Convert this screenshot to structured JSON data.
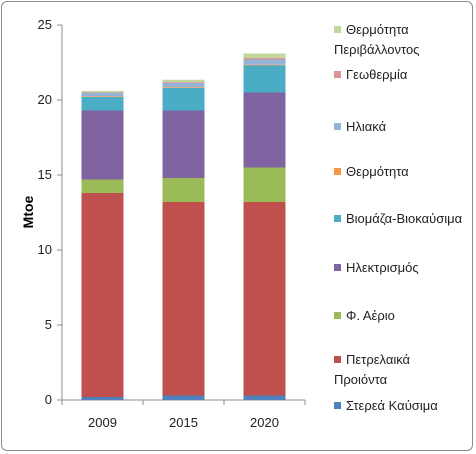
{
  "chart_data": {
    "type": "bar",
    "stacked": true,
    "title": "",
    "xlabel": "",
    "ylabel": "Mtoe",
    "ylim": [
      0,
      25
    ],
    "yticks": [
      0,
      5,
      10,
      15,
      20,
      25
    ],
    "grid": false,
    "legend_position": "right",
    "categories": [
      "2009",
      "2015",
      "2020"
    ],
    "series": [
      {
        "name": "Στερεά Καύσιμα",
        "color": "#4f81bd",
        "values": [
          0.2,
          0.3,
          0.3
        ]
      },
      {
        "name": "Πετρελαικά Προιόντα",
        "color": "#c0504d",
        "values": [
          13.6,
          12.9,
          12.9
        ]
      },
      {
        "name": "Φ. Αέριο",
        "color": "#9bbb59",
        "values": [
          0.9,
          1.6,
          2.3
        ]
      },
      {
        "name": "Ηλεκτρισμός",
        "color": "#8064a2",
        "values": [
          4.6,
          4.5,
          5.0
        ]
      },
      {
        "name": "Βιομάζα-Βιοκαύσιμα",
        "color": "#4bacc6",
        "values": [
          0.9,
          1.5,
          1.8
        ]
      },
      {
        "name": "Θερμότητα",
        "color": "#f79646",
        "values": [
          0.05,
          0.05,
          0.05
        ]
      },
      {
        "name": "Ηλιακά",
        "color": "#95b3d7",
        "values": [
          0.25,
          0.3,
          0.35
        ]
      },
      {
        "name": "Γεωθερμία",
        "color": "#d99694",
        "values": [
          0.02,
          0.05,
          0.1
        ]
      },
      {
        "name": "Θερμότητα Περιβάλλοντος",
        "color": "#c3d69b",
        "values": [
          0.08,
          0.15,
          0.3
        ]
      }
    ]
  }
}
